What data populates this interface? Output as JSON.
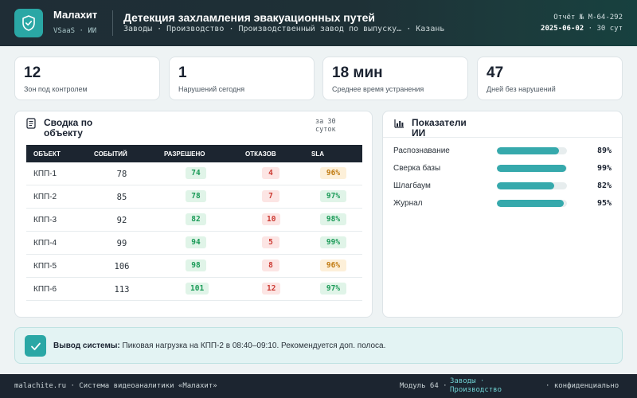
{
  "header": {
    "brand": "Малахит",
    "brand_sub": "VSaaS · ИИ",
    "title": "Детекция захламления эвакуационных путей",
    "breadcrumbs": "Заводы · Производство · Производственный завод по выпуску… · Казань",
    "report_no": "Отчёт № M-64-292",
    "report_date": "2025-06-02",
    "report_period": "· 30 сут"
  },
  "kpis": [
    {
      "value": "12",
      "label": "Зон под контролем"
    },
    {
      "value": "1",
      "label": "Нарушений сегодня"
    },
    {
      "value": "18 мин",
      "label": "Среднее время устранения"
    },
    {
      "value": "47",
      "label": "Дней без нарушений"
    }
  ],
  "summary": {
    "title": "Сводка по объекту",
    "period": "за 30 суток",
    "columns": [
      "ОБЪЕКТ",
      "СОБЫТИЙ",
      "РАЗРЕШЕНО",
      "ОТКАЗОВ",
      "SLA"
    ],
    "rows": [
      {
        "name": "КПП-1",
        "events": "78",
        "allowed": "74",
        "denied": "4",
        "sla": "96%",
        "sla_status": "amber"
      },
      {
        "name": "КПП-2",
        "events": "85",
        "allowed": "78",
        "denied": "7",
        "sla": "97%",
        "sla_status": "green"
      },
      {
        "name": "КПП-3",
        "events": "92",
        "allowed": "82",
        "denied": "10",
        "sla": "98%",
        "sla_status": "green"
      },
      {
        "name": "КПП-4",
        "events": "99",
        "allowed": "94",
        "denied": "5",
        "sla": "99%",
        "sla_status": "green"
      },
      {
        "name": "КПП-5",
        "events": "106",
        "allowed": "98",
        "denied": "8",
        "sla": "96%",
        "sla_status": "amber"
      },
      {
        "name": "КПП-6",
        "events": "113",
        "allowed": "101",
        "denied": "12",
        "sla": "97%",
        "sla_status": "green"
      }
    ]
  },
  "ai_metrics": {
    "title": "Показатели ИИ",
    "items": [
      {
        "label": "Распознавание",
        "value": 89,
        "display": "89%"
      },
      {
        "label": "Сверка базы",
        "value": 99,
        "display": "99%"
      },
      {
        "label": "Шлагбаум",
        "value": 82,
        "display": "82%"
      },
      {
        "label": "Журнал",
        "value": 95,
        "display": "95%"
      }
    ]
  },
  "conclusion": {
    "label": "Вывод системы:",
    "text": "Пиковая нагрузка на КПП-2 в 08:40–09:10. Рекомендуется доп. полоса."
  },
  "footer": {
    "left": "malachite.ru · Система видеоаналитики «Малахит»",
    "module": "Модуль 64 ·",
    "link": "Заводы · Производство",
    "right": "· конфиденциально"
  },
  "colors": {
    "accent": "#2aa7a5",
    "dark": "#1c2530",
    "ok": "#1a9a57",
    "danger": "#cc3b33",
    "warning": "#c07a10"
  },
  "icons": {
    "logo": "shield-check-icon",
    "summary": "document-icon",
    "metrics": "bar-chart-icon",
    "conclusion": "check-icon"
  }
}
